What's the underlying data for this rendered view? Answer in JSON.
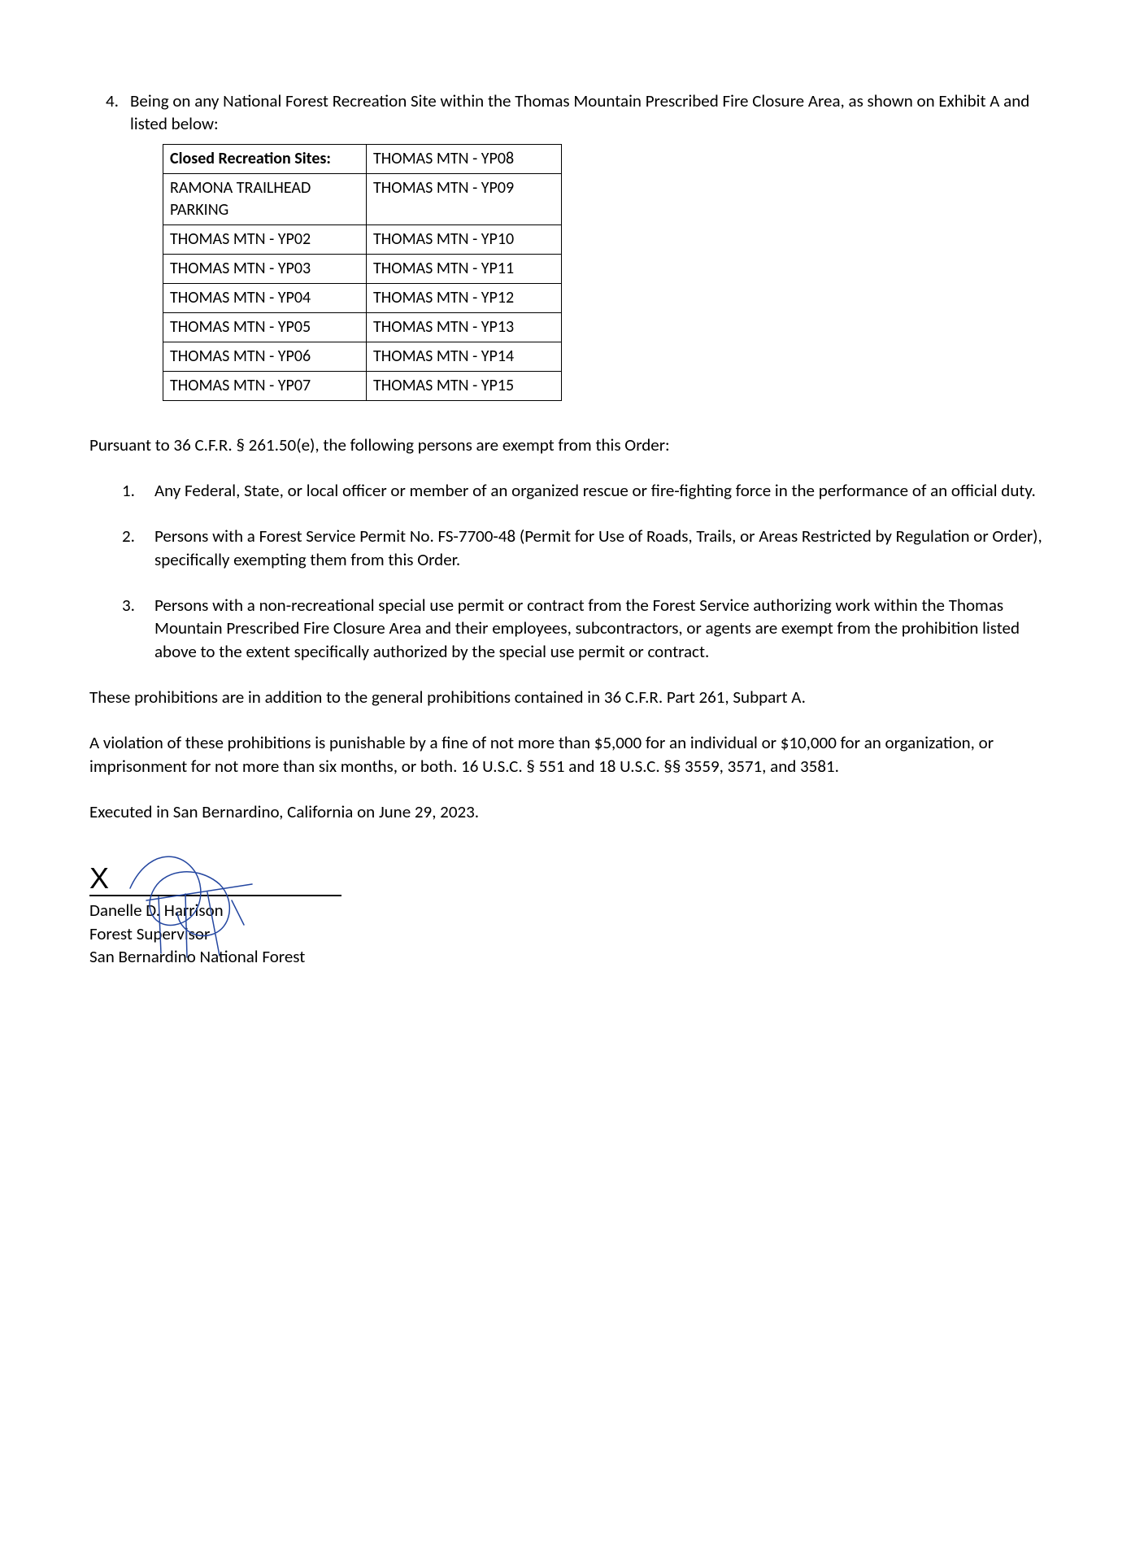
{
  "item4": {
    "num": "4.",
    "text": "Being on any National Forest Recreation Site within the Thomas Mountain Prescribed Fire Closure Area, as shown on Exhibit A and listed below:"
  },
  "rec_table": {
    "header_left": "Closed Recreation Sites:",
    "header_right": "THOMAS MTN - YP08",
    "rows": [
      {
        "left": "RAMONA TRAILHEAD PARKING",
        "right": "THOMAS MTN - YP09"
      },
      {
        "left": "THOMAS MTN - YP02",
        "right": "THOMAS MTN - YP10"
      },
      {
        "left": "THOMAS MTN - YP03",
        "right": "THOMAS MTN - YP11"
      },
      {
        "left": "THOMAS MTN - YP04",
        "right": "THOMAS MTN - YP12"
      },
      {
        "left": "THOMAS MTN - YP05",
        "right": "THOMAS MTN - YP13"
      },
      {
        "left": "THOMAS MTN - YP06",
        "right": "THOMAS MTN - YP14"
      },
      {
        "left": "THOMAS MTN - YP07",
        "right": "THOMAS MTN - YP15"
      }
    ]
  },
  "exempt_intro": "Pursuant to 36 C.F.R. § 261.50(e), the following persons are exempt from this Order:",
  "exempt_items": [
    {
      "num": "1.",
      "text": "Any Federal, State, or local officer or member of an organized rescue or fire-fighting force in the performance of an official duty."
    },
    {
      "num": "2.",
      "text": "Persons with a Forest Service Permit No. FS-7700-48 (Permit for Use of Roads, Trails, or Areas Restricted by Regulation or Order), specifically exempting them from this Order."
    },
    {
      "num": "3.",
      "text": "Persons with a non-recreational special use permit or contract from the Forest Service authorizing work within the Thomas Mountain Prescribed Fire Closure Area and their employees, subcontractors, or agents are exempt from the prohibition listed above to the extent specifically authorized by the special use permit or contract."
    }
  ],
  "addl_para": "These prohibitions are in addition to the general prohibitions contained in 36 C.F.R. Part 261, Subpart A.",
  "violation_para": "A violation of these prohibitions is punishable by a fine of not more than $5,000 for an individual or $10,000 for an organization, or imprisonment for not more than six months, or both. 16 U.S.C. § 551 and 18 U.S.C. §§ 3559, 3571, and 3581.",
  "executed_para": "Executed in San Bernardino, California on June 29, 2023.",
  "signature": {
    "x_mark": "X",
    "name": "Danelle D. Harrison",
    "title": "Forest Supervisor",
    "org": "San Bernardino National Forest",
    "stroke_color": "#2346a0",
    "stroke_width": 1.5
  }
}
